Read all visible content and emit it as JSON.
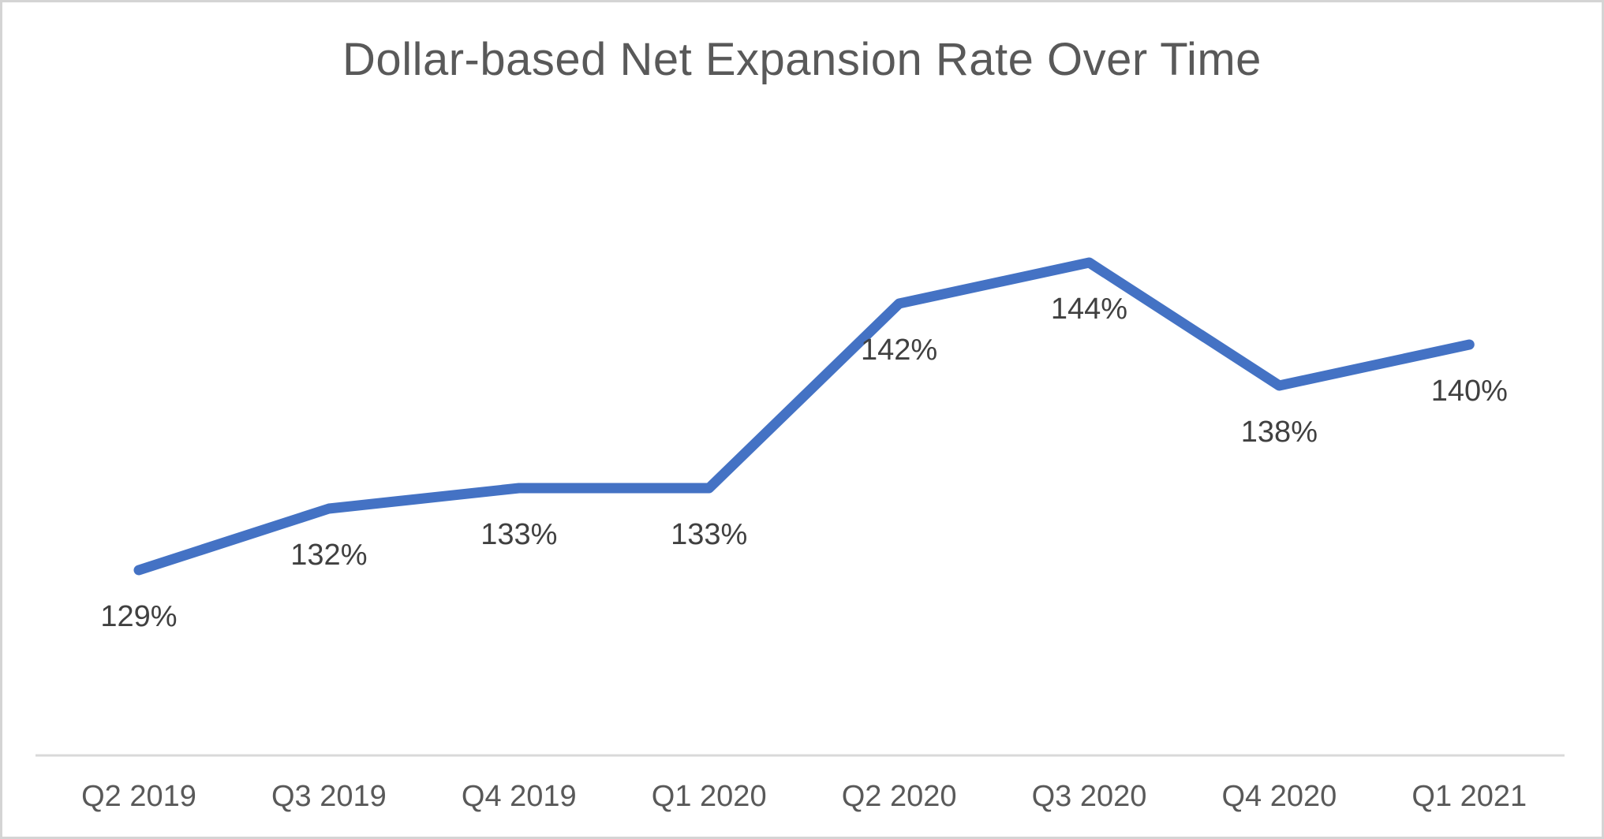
{
  "chart_data": {
    "type": "line",
    "title": "Dollar-based Net Expansion Rate Over Time",
    "categories": [
      "Q2 2019",
      "Q3 2019",
      "Q4 2019",
      "Q1 2020",
      "Q2 2020",
      "Q3 2020",
      "Q4 2020",
      "Q1 2021"
    ],
    "values": [
      129,
      132,
      133,
      133,
      142,
      144,
      138,
      140
    ],
    "data_labels": [
      "129%",
      "132%",
      "133%",
      "133%",
      "142%",
      "144%",
      "138%",
      "140%"
    ],
    "xlabel": "",
    "ylabel": "",
    "ylim": [
      125,
      150
    ],
    "y_axis_visible": false,
    "grid": false,
    "legend": false,
    "data_label_position": "below",
    "colors": {
      "line": "#4472C4",
      "axis_line": "#D9D9D9",
      "title_text": "#595959",
      "data_label_text": "#404040",
      "axis_label_text": "#595959",
      "frame_border": "#D4D4D4",
      "background": "#FFFFFF"
    }
  }
}
